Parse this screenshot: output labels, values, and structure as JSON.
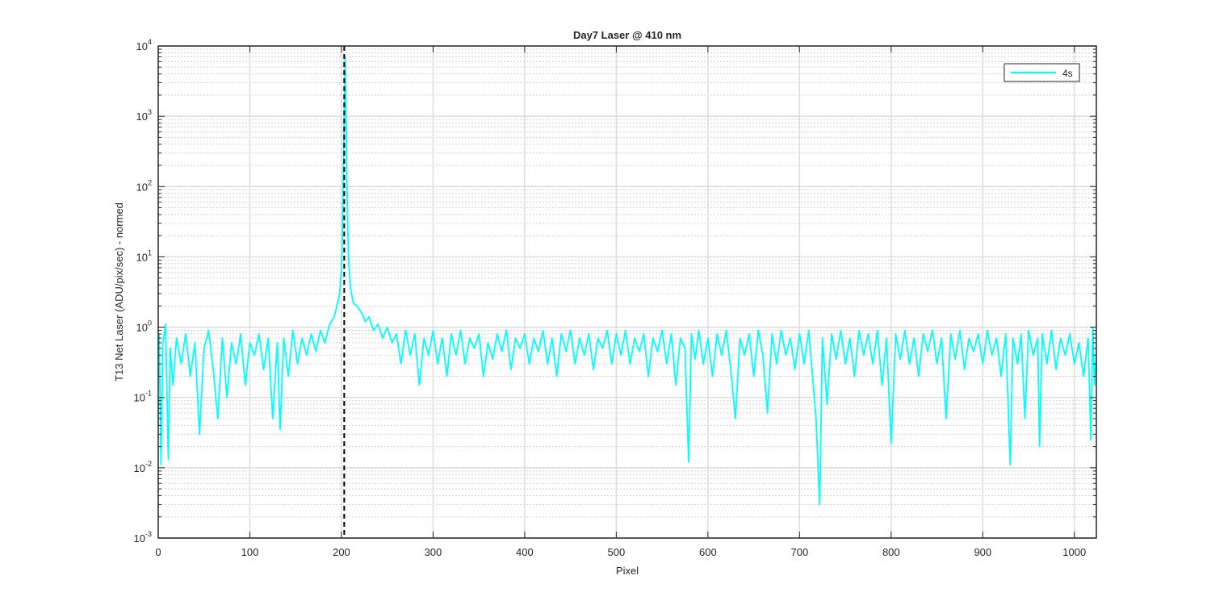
{
  "chart_data": {
    "type": "line",
    "title": "Day7 Laser @ 410 nm",
    "xlabel": "Pixel",
    "ylabel": "T13 Net Laser (ADU/pix/sec) - normed",
    "xlim": [
      0,
      1024
    ],
    "ylim": [
      0.001,
      10000
    ],
    "yscale": "log",
    "grid": true,
    "minor_grid": true,
    "x_ticks": [
      0,
      100,
      200,
      300,
      400,
      500,
      600,
      700,
      800,
      900,
      1000
    ],
    "y_ticks": [
      {
        "base": "10",
        "exp": "-3",
        "value": 0.001
      },
      {
        "base": "10",
        "exp": "-2",
        "value": 0.01
      },
      {
        "base": "10",
        "exp": "-1",
        "value": 0.1
      },
      {
        "base": "10",
        "exp": "0",
        "value": 1
      },
      {
        "base": "10",
        "exp": "1",
        "value": 10
      },
      {
        "base": "10",
        "exp": "2",
        "value": 100
      },
      {
        "base": "10",
        "exp": "3",
        "value": 1000
      },
      {
        "base": "10",
        "exp": "4",
        "value": 10000
      }
    ],
    "legend_position": "top-right",
    "vertical_marker": {
      "x": 203,
      "style": "dashed",
      "color": "#000000"
    },
    "series": [
      {
        "name": "4s",
        "color": "#00FFFF",
        "points": [
          [
            1,
            0.8
          ],
          [
            3,
            0.011
          ],
          [
            5,
            0.6
          ],
          [
            8,
            1.1
          ],
          [
            11,
            0.013
          ],
          [
            13,
            0.5
          ],
          [
            16,
            0.15
          ],
          [
            20,
            0.7
          ],
          [
            25,
            0.3
          ],
          [
            30,
            0.8
          ],
          [
            35,
            0.2
          ],
          [
            40,
            0.6
          ],
          [
            45,
            0.03
          ],
          [
            50,
            0.5
          ],
          [
            55,
            0.9
          ],
          [
            60,
            0.25
          ],
          [
            65,
            0.05
          ],
          [
            70,
            0.7
          ],
          [
            75,
            0.1
          ],
          [
            80,
            0.6
          ],
          [
            85,
            0.3
          ],
          [
            90,
            0.8
          ],
          [
            95,
            0.15
          ],
          [
            100,
            0.6
          ],
          [
            105,
            0.4
          ],
          [
            110,
            0.8
          ],
          [
            115,
            0.25
          ],
          [
            120,
            0.7
          ],
          [
            125,
            0.05
          ],
          [
            130,
            0.6
          ],
          [
            133,
            0.035
          ],
          [
            137,
            0.7
          ],
          [
            142,
            0.2
          ],
          [
            147,
            0.9
          ],
          [
            152,
            0.3
          ],
          [
            157,
            0.7
          ],
          [
            162,
            0.4
          ],
          [
            167,
            0.8
          ],
          [
            172,
            0.45
          ],
          [
            177,
            0.9
          ],
          [
            182,
            0.6
          ],
          [
            187,
            1.1
          ],
          [
            192,
            1.4
          ],
          [
            195,
            2
          ],
          [
            198,
            3
          ],
          [
            200,
            7
          ],
          [
            201,
            20
          ],
          [
            202,
            150
          ],
          [
            203,
            1000
          ],
          [
            204,
            7000
          ],
          [
            205,
            1000
          ],
          [
            206,
            100
          ],
          [
            207,
            20
          ],
          [
            208,
            8
          ],
          [
            210,
            3.5
          ],
          [
            213,
            2.2
          ],
          [
            217,
            2
          ],
          [
            222,
            1.6
          ],
          [
            226,
            1.2
          ],
          [
            230,
            1.4
          ],
          [
            235,
            0.9
          ],
          [
            240,
            1.1
          ],
          [
            245,
            0.7
          ],
          [
            250,
            1
          ],
          [
            255,
            0.6
          ],
          [
            260,
            0.8
          ],
          [
            265,
            0.3
          ],
          [
            270,
            0.9
          ],
          [
            275,
            0.4
          ],
          [
            280,
            0.8
          ],
          [
            285,
            0.15
          ],
          [
            290,
            0.7
          ],
          [
            295,
            0.4
          ],
          [
            300,
            0.9
          ],
          [
            305,
            0.3
          ],
          [
            310,
            0.7
          ],
          [
            315,
            0.2
          ],
          [
            320,
            0.8
          ],
          [
            325,
            0.4
          ],
          [
            330,
            0.9
          ],
          [
            335,
            0.3
          ],
          [
            340,
            0.7
          ],
          [
            345,
            0.5
          ],
          [
            350,
            0.8
          ],
          [
            355,
            0.2
          ],
          [
            360,
            0.6
          ],
          [
            365,
            0.35
          ],
          [
            370,
            0.8
          ],
          [
            375,
            0.45
          ],
          [
            380,
            0.9
          ],
          [
            385,
            0.25
          ],
          [
            390,
            0.7
          ],
          [
            395,
            0.5
          ],
          [
            400,
            0.8
          ],
          [
            405,
            0.3
          ],
          [
            410,
            0.7
          ],
          [
            415,
            0.45
          ],
          [
            420,
            0.9
          ],
          [
            425,
            0.3
          ],
          [
            430,
            0.7
          ],
          [
            435,
            0.2
          ],
          [
            440,
            0.8
          ],
          [
            445,
            0.45
          ],
          [
            450,
            0.9
          ],
          [
            455,
            0.3
          ],
          [
            460,
            0.7
          ],
          [
            465,
            0.4
          ],
          [
            470,
            0.8
          ],
          [
            475,
            0.25
          ],
          [
            480,
            0.7
          ],
          [
            485,
            0.5
          ],
          [
            490,
            0.9
          ],
          [
            495,
            0.3
          ],
          [
            500,
            0.8
          ],
          [
            505,
            0.4
          ],
          [
            510,
            0.9
          ],
          [
            515,
            0.3
          ],
          [
            520,
            0.7
          ],
          [
            525,
            0.45
          ],
          [
            530,
            0.8
          ],
          [
            535,
            0.2
          ],
          [
            540,
            0.7
          ],
          [
            545,
            0.45
          ],
          [
            550,
            0.9
          ],
          [
            555,
            0.3
          ],
          [
            560,
            0.8
          ],
          [
            565,
            0.15
          ],
          [
            570,
            0.7
          ],
          [
            575,
            0.5
          ],
          [
            579,
            0.012
          ],
          [
            582,
            0.8
          ],
          [
            586,
            0.35
          ],
          [
            590,
            0.9
          ],
          [
            595,
            0.3
          ],
          [
            600,
            0.7
          ],
          [
            605,
            0.2
          ],
          [
            610,
            0.8
          ],
          [
            615,
            0.4
          ],
          [
            620,
            0.9
          ],
          [
            625,
            0.25
          ],
          [
            630,
            0.05
          ],
          [
            635,
            0.7
          ],
          [
            640,
            0.4
          ],
          [
            645,
            0.8
          ],
          [
            650,
            0.2
          ],
          [
            655,
            0.9
          ],
          [
            660,
            0.4
          ],
          [
            665,
            0.06
          ],
          [
            670,
            0.8
          ],
          [
            675,
            0.3
          ],
          [
            680,
            0.9
          ],
          [
            685,
            0.4
          ],
          [
            690,
            0.7
          ],
          [
            695,
            0.25
          ],
          [
            700,
            0.8
          ],
          [
            705,
            0.3
          ],
          [
            710,
            0.9
          ],
          [
            715,
            0.15
          ],
          [
            718,
            0.05
          ],
          [
            722,
            0.003
          ],
          [
            725,
            0.7
          ],
          [
            730,
            0.08
          ],
          [
            735,
            0.8
          ],
          [
            740,
            0.35
          ],
          [
            745,
            0.9
          ],
          [
            750,
            0.3
          ],
          [
            755,
            0.7
          ],
          [
            760,
            0.2
          ],
          [
            765,
            0.9
          ],
          [
            770,
            0.4
          ],
          [
            775,
            0.8
          ],
          [
            780,
            0.3
          ],
          [
            785,
            0.9
          ],
          [
            790,
            0.15
          ],
          [
            795,
            0.7
          ],
          [
            800,
            0.022
          ],
          [
            805,
            0.8
          ],
          [
            810,
            0.35
          ],
          [
            815,
            0.9
          ],
          [
            820,
            0.3
          ],
          [
            825,
            0.7
          ],
          [
            830,
            0.2
          ],
          [
            835,
            0.8
          ],
          [
            840,
            0.45
          ],
          [
            845,
            0.9
          ],
          [
            850,
            0.3
          ],
          [
            855,
            0.7
          ],
          [
            860,
            0.05
          ],
          [
            865,
            0.8
          ],
          [
            870,
            0.35
          ],
          [
            875,
            0.9
          ],
          [
            880,
            0.25
          ],
          [
            885,
            0.7
          ],
          [
            890,
            0.45
          ],
          [
            895,
            0.8
          ],
          [
            900,
            0.3
          ],
          [
            905,
            0.9
          ],
          [
            910,
            0.4
          ],
          [
            915,
            0.7
          ],
          [
            920,
            0.2
          ],
          [
            925,
            0.8
          ],
          [
            930,
            0.011
          ],
          [
            933,
            0.7
          ],
          [
            938,
            0.3
          ],
          [
            942,
            0.8
          ],
          [
            946,
            0.05
          ],
          [
            950,
            0.9
          ],
          [
            955,
            0.4
          ],
          [
            960,
            0.7
          ],
          [
            962,
            0.02
          ],
          [
            965,
            0.8
          ],
          [
            970,
            0.3
          ],
          [
            975,
            0.9
          ],
          [
            980,
            0.25
          ],
          [
            985,
            0.7
          ],
          [
            990,
            0.4
          ],
          [
            995,
            0.8
          ],
          [
            1000,
            0.3
          ],
          [
            1005,
            0.6
          ],
          [
            1010,
            0.2
          ],
          [
            1015,
            0.7
          ],
          [
            1018,
            0.025
          ],
          [
            1020,
            1.0
          ],
          [
            1022,
            0.15
          ],
          [
            1024,
            0.4
          ]
        ]
      }
    ]
  }
}
